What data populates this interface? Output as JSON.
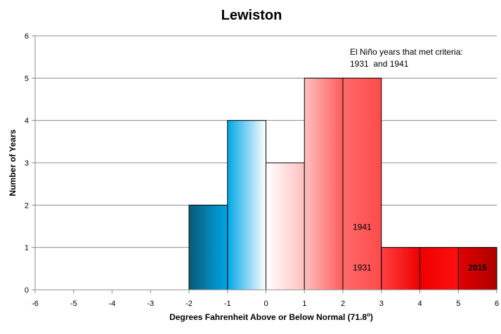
{
  "chart_data": {
    "type": "bar",
    "title": "Lewiston",
    "xlabel": "Degrees Fahrenheit Above or Below Normal (71.8",
    "xlabel_sup": "o",
    "xlabel_end": ")",
    "ylabel": "Number of Years",
    "xlim": [
      -6,
      6
    ],
    "ylim": [
      0,
      6
    ],
    "x_ticks": [
      "-6",
      "-5",
      "-4",
      "-3",
      "-2",
      "-1",
      "0",
      "1",
      "2",
      "3",
      "4",
      "5",
      "6"
    ],
    "y_ticks": [
      "0",
      "1",
      "2",
      "3",
      "4",
      "5",
      "6"
    ],
    "grid": true,
    "bins": [
      {
        "from": -2,
        "to": -1,
        "count": 2,
        "gradient": [
          "#0a5a78",
          "#00a6e6"
        ]
      },
      {
        "from": -1,
        "to": 0,
        "count": 4,
        "gradient": [
          "#00a6e6",
          "#ffffff"
        ]
      },
      {
        "from": 0,
        "to": 1,
        "count": 3,
        "gradient": [
          "#ffffff",
          "#ffc0c0"
        ]
      },
      {
        "from": 1,
        "to": 2,
        "count": 5,
        "gradient": [
          "#ffc0c0",
          "#ff5c5c"
        ]
      },
      {
        "from": 2,
        "to": 3,
        "count": 5,
        "gradient": [
          "#ff6a6a",
          "#ff4a4a"
        ]
      },
      {
        "from": 3,
        "to": 4,
        "count": 1,
        "gradient": [
          "#ff4040",
          "#ee0000"
        ]
      },
      {
        "from": 4,
        "to": 5,
        "count": 1,
        "gradient": [
          "#ee0000",
          "#ff1010"
        ]
      },
      {
        "from": 5,
        "to": 6,
        "count": 1,
        "gradient": [
          "#e00000",
          "#b00000"
        ]
      }
    ],
    "bar_labels": [
      {
        "text": "1941",
        "x": 2.5,
        "y": 1.48,
        "bold": false
      },
      {
        "text": "1931",
        "x": 2.5,
        "y": 0.52,
        "bold": false
      },
      {
        "text": "2015",
        "x": 5.5,
        "y": 0.52,
        "bold": true
      }
    ],
    "annotation": {
      "line1": "El Niño years that met criteria:",
      "line2": "1931  and 1941"
    }
  }
}
